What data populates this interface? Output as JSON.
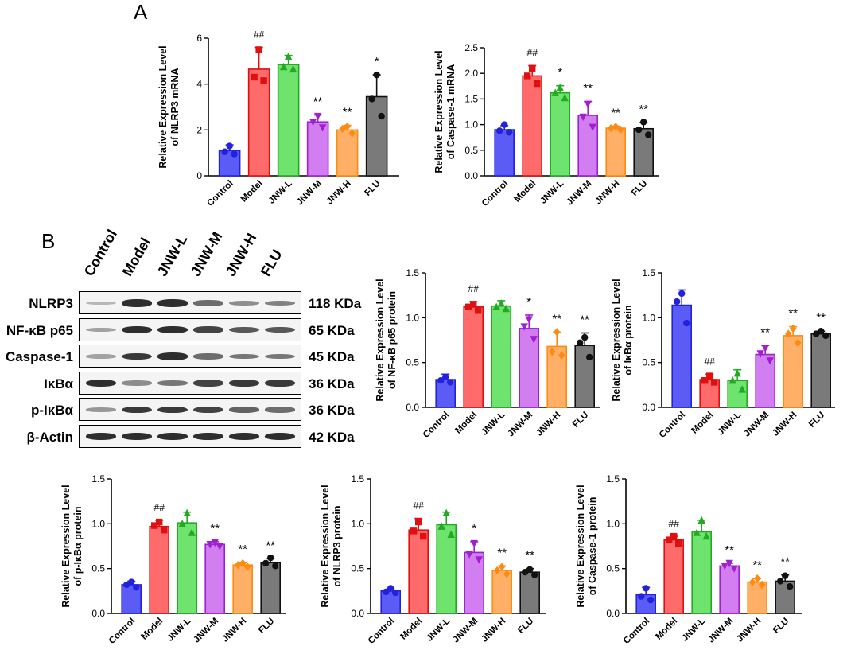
{
  "panels": {
    "a": "A",
    "b": "B"
  },
  "blot": {
    "lanes": [
      "Control",
      "Model",
      "JNW-L",
      "JNW-M",
      "JNW-H",
      "FLU"
    ],
    "rows": [
      {
        "label": "NLRP3",
        "kda": "118 KDa",
        "intensity": [
          0.25,
          0.9,
          0.9,
          0.6,
          0.45,
          0.5
        ]
      },
      {
        "label": "NF-κB p65",
        "kda": "65 KDa",
        "intensity": [
          0.35,
          0.9,
          0.9,
          0.8,
          0.7,
          0.7
        ]
      },
      {
        "label": "Caspase-1",
        "kda": "45 KDa",
        "intensity": [
          0.35,
          0.85,
          0.9,
          0.6,
          0.55,
          0.55
        ]
      },
      {
        "label": "IκBα",
        "kda": "36 KDa",
        "intensity": [
          0.9,
          0.45,
          0.55,
          0.8,
          0.85,
          0.85
        ]
      },
      {
        "label": "p-IκBα",
        "kda": "36 KDa",
        "intensity": [
          0.4,
          0.85,
          0.85,
          0.8,
          0.65,
          0.6
        ]
      },
      {
        "label": "β-Actin",
        "kda": "42 KDa",
        "intensity": [
          0.9,
          0.9,
          0.9,
          0.9,
          0.9,
          0.9
        ]
      }
    ]
  },
  "chart_data": [
    {
      "type": "bar",
      "categories": [
        "Control",
        "Model",
        "JNW-L",
        "JNW-M",
        "JNW-H",
        "FLU"
      ],
      "values": [
        1.1,
        4.65,
        4.85,
        2.35,
        2.0,
        3.45
      ],
      "errors": [
        0.25,
        0.95,
        0.4,
        0.3,
        0.2,
        0.95
      ],
      "points": [
        [
          1.3,
          1.05,
          0.95
        ],
        [
          5.5,
          4.3,
          4.15
        ],
        [
          5.2,
          4.75,
          4.65
        ],
        [
          2.6,
          2.35,
          2.1
        ],
        [
          2.15,
          2.05,
          1.85
        ],
        [
          4.4,
          3.35,
          2.6
        ]
      ],
      "annotations": [
        "",
        "##",
        "",
        "**",
        "**",
        "*"
      ],
      "ylabel": "Relative Expression Level\nof NLRP3 mRNA",
      "ylim": [
        0,
        6
      ],
      "yticks": [
        "0",
        "2",
        "4",
        "6"
      ]
    },
    {
      "type": "bar",
      "categories": [
        "Control",
        "Model",
        "JNW-L",
        "JNW-M",
        "JNW-H",
        "FLU"
      ],
      "values": [
        0.9,
        1.95,
        1.62,
        1.18,
        0.93,
        0.92
      ],
      "errors": [
        0.08,
        0.2,
        0.14,
        0.27,
        0.04,
        0.12
      ],
      "points": [
        [
          1.0,
          0.88,
          0.85
        ],
        [
          2.1,
          1.95,
          1.8
        ],
        [
          1.72,
          1.62,
          1.52
        ],
        [
          1.4,
          1.15,
          0.95
        ],
        [
          0.96,
          0.93,
          0.9
        ],
        [
          1.05,
          0.9,
          0.8
        ]
      ],
      "annotations": [
        "",
        "##",
        "*",
        "**",
        "**",
        "**"
      ],
      "ylabel": "Relative Expression Level\nof Caspase-1 mRNA",
      "ylim": [
        0,
        2.5
      ],
      "yticks": [
        "0.0",
        "0.5",
        "1.0",
        "1.5",
        "2.0",
        "2.5"
      ]
    },
    {
      "type": "bar",
      "categories": [
        "Control",
        "Model",
        "JNW-L",
        "JNW-M",
        "JNW-H",
        "FLU"
      ],
      "values": [
        0.31,
        1.12,
        1.13,
        0.88,
        0.68,
        0.69
      ],
      "errors": [
        0.06,
        0.06,
        0.06,
        0.15,
        0.16,
        0.14
      ],
      "points": [
        [
          0.34,
          0.3,
          0.28
        ],
        [
          1.15,
          1.12,
          1.08
        ],
        [
          1.16,
          1.12,
          1.1
        ],
        [
          0.98,
          0.9,
          0.76
        ],
        [
          0.84,
          0.62,
          0.58
        ],
        [
          0.78,
          0.72,
          0.56
        ]
      ],
      "annotations": [
        "",
        "##",
        "",
        "*",
        "**",
        "**"
      ],
      "ylabel": "Relative Expression Level\nof NF-κB p65 protein",
      "ylim": [
        0,
        1.5
      ],
      "yticks": [
        "0.0",
        "0.5",
        "1.0",
        "1.5"
      ]
    },
    {
      "type": "bar",
      "categories": [
        "Control",
        "Model",
        "JNW-L",
        "JNW-M",
        "JNW-H",
        "FLU"
      ],
      "values": [
        1.14,
        0.31,
        0.3,
        0.59,
        0.8,
        0.82
      ],
      "errors": [
        0.17,
        0.06,
        0.12,
        0.1,
        0.1,
        0.03
      ],
      "points": [
        [
          1.27,
          1.18,
          0.94
        ],
        [
          0.35,
          0.3,
          0.28
        ],
        [
          0.38,
          0.3,
          0.2
        ],
        [
          0.66,
          0.6,
          0.52
        ],
        [
          0.88,
          0.82,
          0.72
        ],
        [
          0.85,
          0.82,
          0.8
        ]
      ],
      "annotations": [
        "",
        "##",
        "",
        "**",
        "**",
        "**"
      ],
      "ylabel": "Relative Expression Level\nof IκBα protein",
      "ylim": [
        0,
        1.5
      ],
      "yticks": [
        "0.0",
        "0.5",
        "1.0",
        "1.5"
      ]
    },
    {
      "type": "bar",
      "categories": [
        "Control",
        "Model",
        "JNW-L",
        "JNW-M",
        "JNW-H",
        "FLU"
      ],
      "values": [
        0.32,
        0.97,
        1.01,
        0.77,
        0.54,
        0.57
      ],
      "errors": [
        0.04,
        0.07,
        0.12,
        0.03,
        0.03,
        0.04
      ],
      "points": [
        [
          0.35,
          0.32,
          0.29
        ],
        [
          1.02,
          0.98,
          0.93
        ],
        [
          1.12,
          1.0,
          0.9
        ],
        [
          0.79,
          0.77,
          0.75
        ],
        [
          0.56,
          0.54,
          0.52
        ],
        [
          0.62,
          0.56,
          0.53
        ]
      ],
      "annotations": [
        "",
        "##",
        "",
        "**",
        "**",
        "**"
      ],
      "ylabel": "Relative Expression Level\nof p-IκBα protein",
      "ylim": [
        0,
        1.5
      ],
      "yticks": [
        "0.0",
        "0.5",
        "1.0",
        "1.5"
      ]
    },
    {
      "type": "bar",
      "categories": [
        "Control",
        "Model",
        "JNW-L",
        "JNW-M",
        "JNW-H",
        "FLU"
      ],
      "values": [
        0.25,
        0.93,
        0.99,
        0.68,
        0.48,
        0.46
      ],
      "errors": [
        0.03,
        0.13,
        0.14,
        0.12,
        0.05,
        0.04
      ],
      "points": [
        [
          0.28,
          0.24,
          0.23
        ],
        [
          1.02,
          0.92,
          0.86
        ],
        [
          1.12,
          0.97,
          0.88
        ],
        [
          0.78,
          0.66,
          0.6
        ],
        [
          0.52,
          0.48,
          0.44
        ],
        [
          0.49,
          0.46,
          0.43
        ]
      ],
      "annotations": [
        "",
        "##",
        "",
        "*",
        "**",
        "**"
      ],
      "ylabel": "Relative Expression Level\nof NLRP3 protein",
      "ylim": [
        0,
        1.5
      ],
      "yticks": [
        "0.0",
        "0.5",
        "1.0",
        "1.5"
      ]
    },
    {
      "type": "bar",
      "categories": [
        "Control",
        "Model",
        "JNW-L",
        "JNW-M",
        "JNW-H",
        "FLU"
      ],
      "values": [
        0.21,
        0.82,
        0.91,
        0.53,
        0.35,
        0.36
      ],
      "errors": [
        0.08,
        0.04,
        0.13,
        0.03,
        0.04,
        0.07
      ],
      "points": [
        [
          0.28,
          0.19,
          0.15
        ],
        [
          0.86,
          0.82,
          0.78
        ],
        [
          1.04,
          0.9,
          0.86
        ],
        [
          0.56,
          0.53,
          0.5
        ],
        [
          0.39,
          0.35,
          0.32
        ],
        [
          0.42,
          0.36,
          0.3
        ]
      ],
      "annotations": [
        "",
        "##",
        "",
        "**",
        "**",
        "**"
      ],
      "ylabel": "Relative Expression Level\nof Caspase-1 protein",
      "ylim": [
        0,
        1.5
      ],
      "yticks": [
        "0.0",
        "0.5",
        "1.0",
        "1.5"
      ]
    }
  ],
  "style": {
    "fill_colors": [
      "#5a5cf5",
      "#ff6b6b",
      "#6ee46e",
      "#d37ef0",
      "#ffb066",
      "#7a7a7a"
    ],
    "edge_colors": [
      "#2222dd",
      "#e01010",
      "#22aa22",
      "#a020d0",
      "#ff8a10",
      "#111111"
    ],
    "marker_shapes": [
      "circle",
      "square",
      "triangle-up",
      "triangle-down",
      "diamond",
      "circle"
    ]
  }
}
